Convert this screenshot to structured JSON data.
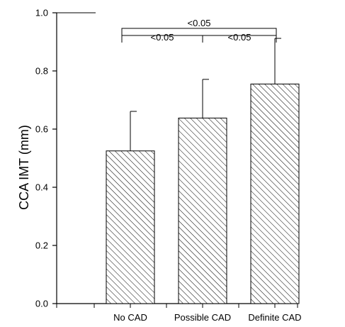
{
  "chart_data": {
    "type": "bar",
    "categories": [
      "No CAD",
      "Possible CAD",
      "Definite CAD"
    ],
    "values": [
      0.525,
      0.638,
      0.755
    ],
    "error_upper": [
      0.661,
      0.771,
      0.912
    ],
    "ylabel": "CCA IMT (mm)",
    "ylim": [
      0.0,
      1.0
    ],
    "yticks": [
      "0.0",
      "0.2",
      "0.4",
      "0.6",
      "0.8",
      "1.0"
    ],
    "bar_fill": "diagonal-hatch",
    "bar_color": "#000000",
    "grid": false,
    "legend": "none",
    "significance": [
      {
        "from": 0,
        "to": 2,
        "label": "<0.05"
      },
      {
        "from": 0,
        "to": 1,
        "label": "<0.05"
      },
      {
        "from": 1,
        "to": 2,
        "label": "<0.05"
      }
    ]
  }
}
